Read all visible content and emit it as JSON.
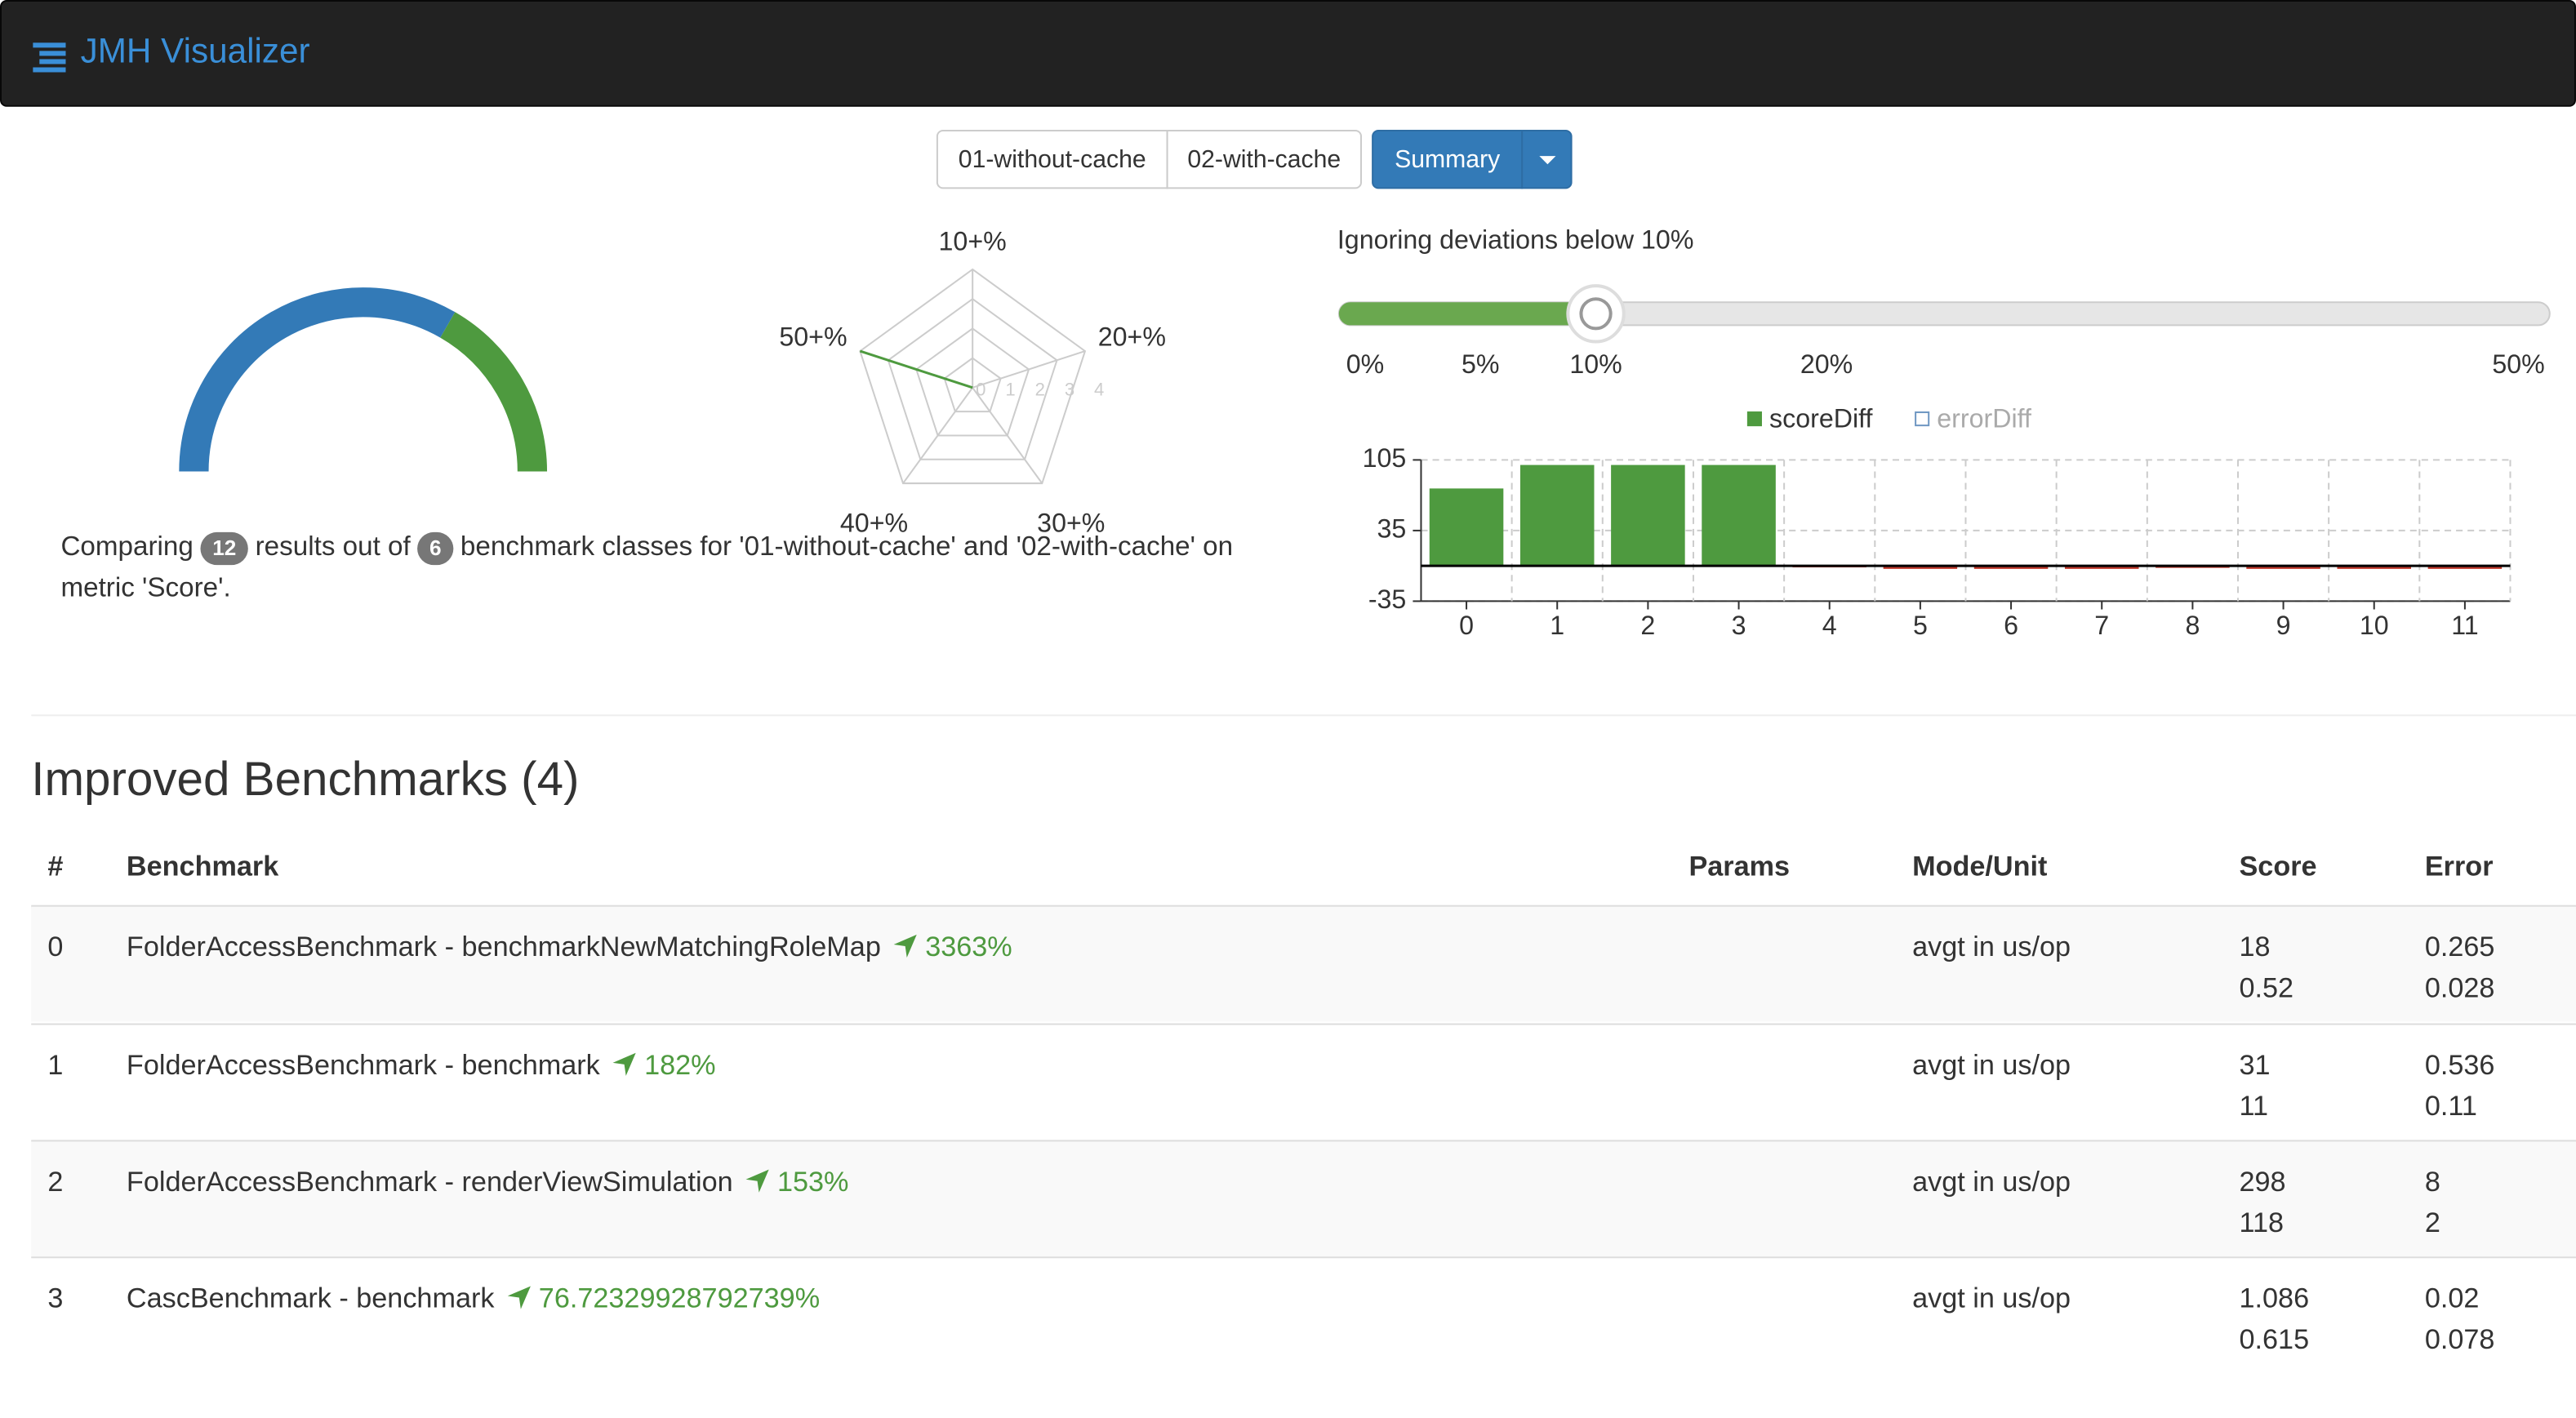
{
  "header": {
    "title": "JMH Visualizer"
  },
  "toolbar": {
    "runs": [
      "01-without-cache",
      "02-with-cache"
    ],
    "view": "Summary"
  },
  "gauge": {
    "type": "gauge",
    "values": [
      8,
      4
    ],
    "colors": [
      "#337ab7",
      "#4e9a3f"
    ]
  },
  "radar": {
    "type": "radar",
    "categories": [
      "10+%",
      "20+%",
      "30+%",
      "40+%",
      "50+%"
    ],
    "values": [
      0,
      0,
      0,
      0,
      4
    ],
    "rlim": [
      0,
      4
    ],
    "rticks": [
      0,
      1,
      2,
      3,
      4
    ],
    "color": "#4e9a3f"
  },
  "slider": {
    "label": "Ignoring deviations below 10%",
    "value": 10,
    "xlim": [
      0,
      50
    ],
    "xticks": [
      {
        "value": 0,
        "label": "0%"
      },
      {
        "value": 5,
        "label": "5%"
      },
      {
        "value": 10,
        "label": "10%"
      },
      {
        "value": 20,
        "label": "20%"
      },
      {
        "value": 50,
        "label": "50%"
      }
    ],
    "color": "#6aa84f"
  },
  "diff_chart": {
    "type": "bar",
    "legend": [
      {
        "name": "scoreDiff",
        "color": "#4e9a3f"
      },
      {
        "name": "errorDiff",
        "color": "#6f97c2",
        "hollow": true
      }
    ],
    "categories": [
      "0",
      "1",
      "2",
      "3",
      "4",
      "5",
      "6",
      "7",
      "8",
      "9",
      "10",
      "11"
    ],
    "values": [
      76.7,
      100,
      100,
      100,
      -1.5,
      -3,
      -3,
      -3,
      -2,
      -3,
      -3,
      -3
    ],
    "color": "#4e9a3f",
    "negative_color": "#c0392b",
    "ylim": [
      -35,
      105
    ],
    "yticks": [
      -35,
      35,
      105
    ],
    "grid": true
  },
  "description": {
    "prefix": "Comparing",
    "results": 12,
    "middle": "results out of",
    "classes": 6,
    "suffix": "benchmark classes for '01-without-cache' and '02-with-cache' on metric 'Score'."
  },
  "section": {
    "title": "Improved Benchmarks (4)"
  },
  "table": {
    "columns": [
      "#",
      "Benchmark",
      "Params",
      "Mode/Unit",
      "Score",
      "Error"
    ],
    "rows": [
      {
        "index": 0,
        "benchmark": "FolderAccessBenchmark - benchmarkNewMatchingRoleMap",
        "change": "3363%",
        "mode": "avgt in us/op",
        "score": [
          "18",
          "0.52"
        ],
        "error": [
          "0.265",
          "0.028"
        ]
      },
      {
        "index": 1,
        "benchmark": "FolderAccessBenchmark - benchmark",
        "change": "182%",
        "mode": "avgt in us/op",
        "score": [
          "31",
          "11"
        ],
        "error": [
          "0.536",
          "0.11"
        ]
      },
      {
        "index": 2,
        "benchmark": "FolderAccessBenchmark - renderViewSimulation",
        "change": "153%",
        "mode": "avgt in us/op",
        "score": [
          "298",
          "118"
        ],
        "error": [
          "8",
          "2"
        ]
      },
      {
        "index": 3,
        "benchmark": "CascBenchmark - benchmark",
        "change": "76.72329928792739%",
        "mode": "avgt in us/op",
        "score": [
          "1.086",
          "0.615"
        ],
        "error": [
          "0.02",
          "0.078"
        ]
      }
    ]
  }
}
